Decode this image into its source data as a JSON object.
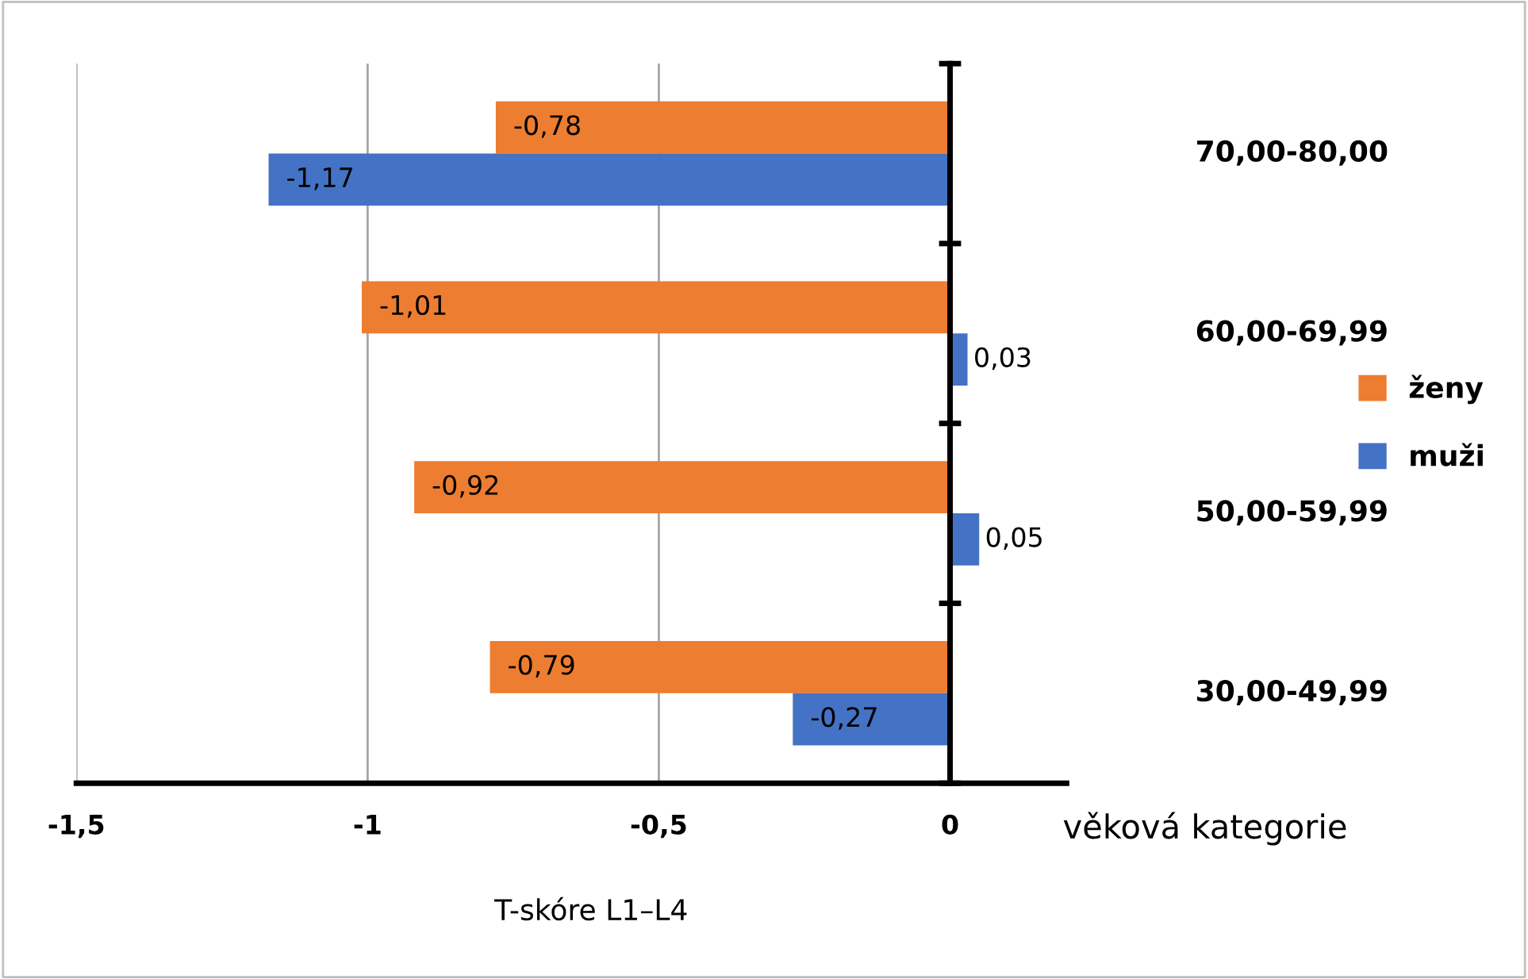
{
  "chart_data": {
    "type": "bar",
    "orientation": "horizontal",
    "categories": [
      "70,00-80,00",
      "60,00-69,99",
      "50,00-59,99",
      "30,00-49,99"
    ],
    "series": [
      {
        "name": "ženy",
        "color": "#ed7d31",
        "values": [
          -0.78,
          -1.01,
          -0.92,
          -0.79
        ],
        "value_labels": [
          "-0,78",
          "-1,01",
          "-0,92",
          "-0,79"
        ]
      },
      {
        "name": "muži",
        "color": "#4472c4",
        "values": [
          -1.17,
          0.03,
          0.05,
          -0.27
        ],
        "value_labels": [
          "-1,17",
          "0,03",
          "0,05",
          "-0,27"
        ]
      }
    ],
    "xlabel": "T-skóre L1–L4",
    "ylabel": "věková kategorie",
    "xlim": [
      -1.5,
      0.2
    ],
    "xticks": [
      {
        "value": -1.5,
        "label": "-1,5"
      },
      {
        "value": -1,
        "label": "-1"
      },
      {
        "value": -0.5,
        "label": "-0,5"
      },
      {
        "value": 0,
        "label": "0"
      }
    ],
    "grid": "x",
    "legend": "right"
  }
}
